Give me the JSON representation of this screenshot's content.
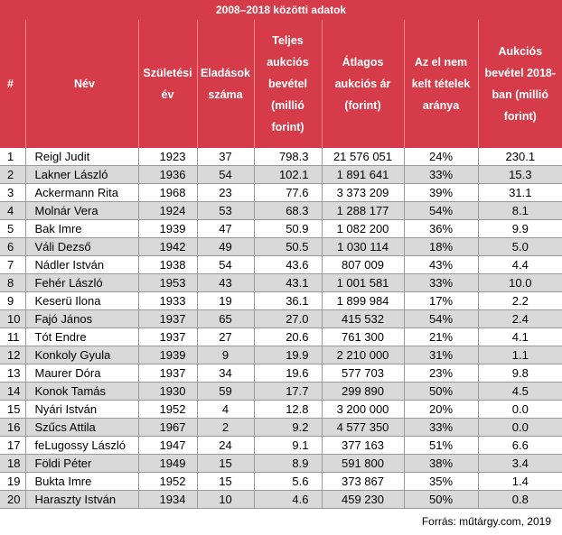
{
  "table": {
    "super_header": "2008–2018 közötti adatok",
    "columns": [
      "#",
      "Név",
      "Születési év",
      "Eladások száma",
      "Teljes aukciós bevétel (millió forint)",
      "Átlagos aukciós ár (forint)",
      "Az el nem kelt tételek aránya",
      "Aukciós bevétel 2018-ban (millió forint)"
    ],
    "rows": [
      [
        "1",
        "Reigl Judit",
        "1923",
        "37",
        "798.3",
        "21 576 051",
        "24%",
        "230.1"
      ],
      [
        "2",
        "Lakner László",
        "1936",
        "54",
        "102.1",
        "1 891 641",
        "33%",
        "15.3"
      ],
      [
        "3",
        "Ackermann Rita",
        "1968",
        "23",
        "77.6",
        "3 373 209",
        "39%",
        "31.1"
      ],
      [
        "4",
        "Molnár Vera",
        "1924",
        "53",
        "68.3",
        "1 288 177",
        "54%",
        "8.1"
      ],
      [
        "5",
        "Bak Imre",
        "1939",
        "47",
        "50.9",
        "1 082 200",
        "36%",
        "9.9"
      ],
      [
        "6",
        "Váli Dezső",
        "1942",
        "49",
        "50.5",
        "1 030 114",
        "18%",
        "5.0"
      ],
      [
        "7",
        "Nádler István",
        "1938",
        "54",
        "43.6",
        "807 009",
        "43%",
        "4.4"
      ],
      [
        "8",
        "Fehér László",
        "1953",
        "43",
        "43.1",
        "1 001 581",
        "33%",
        "10.0"
      ],
      [
        "9",
        "Keserü Ilona",
        "1933",
        "19",
        "36.1",
        "1 899 984",
        "17%",
        "2.2"
      ],
      [
        "10",
        "Fajó János",
        "1937",
        "65",
        "27.0",
        "415 532",
        "54%",
        "2.4"
      ],
      [
        "11",
        "Tót Endre",
        "1937",
        "27",
        "20.6",
        "761 300",
        "21%",
        "4.1"
      ],
      [
        "12",
        "Konkoly Gyula",
        "1939",
        "9",
        "19.9",
        "2 210 000",
        "31%",
        "1.1"
      ],
      [
        "13",
        "Maurer Dóra",
        "1937",
        "34",
        "19.6",
        "577 703",
        "23%",
        "9.8"
      ],
      [
        "14",
        "Konok Tamás",
        "1930",
        "59",
        "17.7",
        "299 890",
        "50%",
        "4.5"
      ],
      [
        "15",
        "Nyári István",
        "1952",
        "4",
        "12.8",
        "3 200 000",
        "20%",
        "0.0"
      ],
      [
        "16",
        "Szűcs Attila",
        "1967",
        "2",
        "9.2",
        "4 577 350",
        "33%",
        "0.0"
      ],
      [
        "17",
        "feLugossy László",
        "1947",
        "24",
        "9.1",
        "377 163",
        "51%",
        "6.6"
      ],
      [
        "18",
        "Földi Péter",
        "1949",
        "15",
        "8.9",
        "591 800",
        "38%",
        "3.4"
      ],
      [
        "19",
        "Bukta Imre",
        "1952",
        "15",
        "5.6",
        "373 867",
        "35%",
        "1.4"
      ],
      [
        "20",
        "Haraszty István",
        "1934",
        "10",
        "4.6",
        "459 230",
        "50%",
        "0.8"
      ]
    ]
  },
  "source": "Forrás: műtárgy.com, 2019",
  "colors": {
    "header_bg": "#d63b4a",
    "header_text": "#ffffff",
    "stripe": "#d9d9d9"
  }
}
